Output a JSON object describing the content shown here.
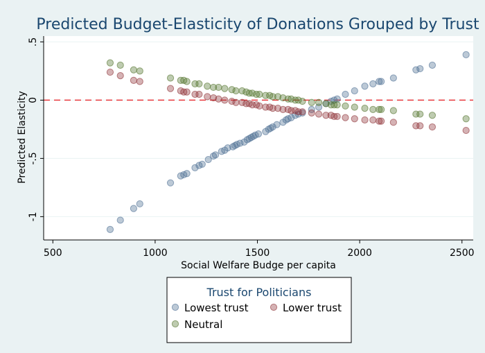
{
  "chart_data": {
    "type": "scatter",
    "title": "Predicted Budget-Elasticity of Donations Grouped by Trust",
    "xlabel": "Social Welfare Budge per capita",
    "ylabel": "Predicted Elasticity",
    "xlim": [
      455,
      2555
    ],
    "ylim": [
      -1.2,
      0.55
    ],
    "x_ticks": [
      500,
      1000,
      1500,
      2000,
      2500
    ],
    "x_tick_labels": [
      "500",
      "1000",
      "1500",
      "2000",
      "2500"
    ],
    "y_ticks": [
      -1,
      -0.5,
      0,
      0.5
    ],
    "y_tick_labels": [
      "-1",
      "-.5",
      "0",
      ".5"
    ],
    "grid": true,
    "reference_line": {
      "y": 0,
      "color": "#e8383d",
      "style": "dashed"
    },
    "legend": {
      "title": "Trust for Politicians",
      "placement": "bottom",
      "entries": [
        "Lowest trust",
        "Lower trust",
        "Neutral"
      ]
    },
    "series": [
      {
        "name": "Lowest trust",
        "color": "#4f7094",
        "x": [
          780,
          830,
          895,
          925,
          1075,
          1125,
          1140,
          1155,
          1195,
          1215,
          1230,
          1260,
          1285,
          1295,
          1325,
          1340,
          1355,
          1380,
          1390,
          1400,
          1415,
          1435,
          1450,
          1460,
          1470,
          1480,
          1490,
          1505,
          1540,
          1555,
          1565,
          1575,
          1595,
          1625,
          1640,
          1650,
          1665,
          1685,
          1700,
          1720,
          1765,
          1800,
          1835,
          1860,
          1875,
          1890,
          1930,
          1975,
          2025,
          2065,
          2095,
          2105,
          2165,
          2275,
          2295,
          2355,
          2520
        ],
        "y": [
          -1.11,
          -1.03,
          -0.93,
          -0.89,
          -0.71,
          -0.65,
          -0.64,
          -0.63,
          -0.58,
          -0.56,
          -0.55,
          -0.51,
          -0.48,
          -0.47,
          -0.44,
          -0.43,
          -0.41,
          -0.4,
          -0.39,
          -0.38,
          -0.37,
          -0.36,
          -0.34,
          -0.33,
          -0.32,
          -0.31,
          -0.3,
          -0.29,
          -0.27,
          -0.25,
          -0.24,
          -0.23,
          -0.21,
          -0.19,
          -0.17,
          -0.16,
          -0.15,
          -0.13,
          -0.12,
          -0.11,
          -0.08,
          -0.06,
          -0.03,
          -0.01,
          0.0,
          0.01,
          0.05,
          0.08,
          0.12,
          0.14,
          0.16,
          0.16,
          0.19,
          0.26,
          0.27,
          0.3,
          0.39
        ]
      },
      {
        "name": "Lower trust",
        "color": "#90353b",
        "x": [
          780,
          830,
          895,
          925,
          1075,
          1125,
          1140,
          1155,
          1195,
          1215,
          1255,
          1285,
          1310,
          1340,
          1375,
          1395,
          1425,
          1445,
          1460,
          1475,
          1495,
          1510,
          1540,
          1560,
          1575,
          1600,
          1625,
          1650,
          1665,
          1685,
          1700,
          1720,
          1765,
          1800,
          1835,
          1860,
          1875,
          1890,
          1930,
          1975,
          2025,
          2065,
          2095,
          2105,
          2165,
          2275,
          2295,
          2355,
          2520
        ],
        "y": [
          0.24,
          0.21,
          0.17,
          0.16,
          0.1,
          0.08,
          0.07,
          0.07,
          0.05,
          0.05,
          0.03,
          0.02,
          0.01,
          0.0,
          -0.01,
          -0.02,
          -0.02,
          -0.03,
          -0.03,
          -0.04,
          -0.04,
          -0.05,
          -0.06,
          -0.06,
          -0.07,
          -0.07,
          -0.08,
          -0.08,
          -0.09,
          -0.09,
          -0.1,
          -0.1,
          -0.11,
          -0.12,
          -0.13,
          -0.13,
          -0.14,
          -0.14,
          -0.15,
          -0.16,
          -0.17,
          -0.17,
          -0.18,
          -0.18,
          -0.19,
          -0.22,
          -0.22,
          -0.23,
          -0.26
        ]
      },
      {
        "name": "Neutral",
        "color": "#55752f",
        "x": [
          780,
          830,
          895,
          925,
          1075,
          1125,
          1140,
          1155,
          1195,
          1215,
          1255,
          1285,
          1310,
          1340,
          1375,
          1395,
          1425,
          1445,
          1460,
          1475,
          1495,
          1510,
          1540,
          1560,
          1575,
          1600,
          1625,
          1650,
          1665,
          1685,
          1700,
          1720,
          1765,
          1800,
          1835,
          1860,
          1875,
          1890,
          1930,
          1975,
          2025,
          2065,
          2095,
          2105,
          2165,
          2275,
          2295,
          2355,
          2520
        ],
        "y": [
          0.32,
          0.3,
          0.26,
          0.25,
          0.19,
          0.17,
          0.17,
          0.16,
          0.14,
          0.14,
          0.12,
          0.11,
          0.11,
          0.1,
          0.09,
          0.08,
          0.08,
          0.07,
          0.06,
          0.06,
          0.05,
          0.05,
          0.04,
          0.04,
          0.03,
          0.03,
          0.02,
          0.01,
          0.01,
          0.0,
          0.0,
          -0.01,
          -0.02,
          -0.02,
          -0.03,
          -0.04,
          -0.04,
          -0.04,
          -0.05,
          -0.06,
          -0.07,
          -0.08,
          -0.08,
          -0.08,
          -0.09,
          -0.12,
          -0.12,
          -0.13,
          -0.16
        ]
      }
    ]
  }
}
